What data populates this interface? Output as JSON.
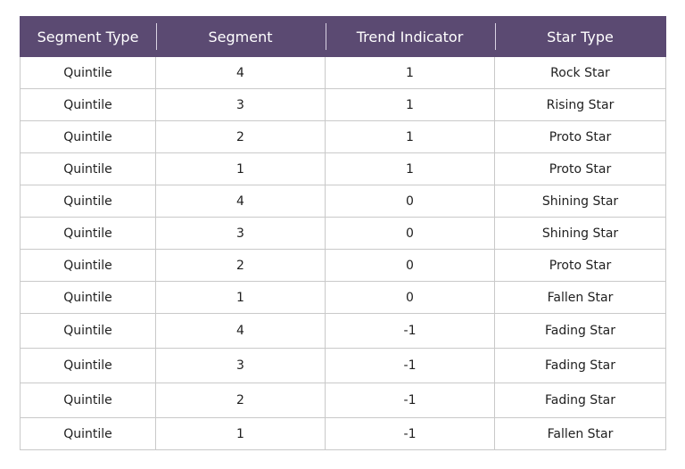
{
  "table": {
    "headers": [
      "Segment  Type",
      "Segment",
      "Trend Indicator",
      "Star Type"
    ],
    "rows": [
      [
        "Quintile",
        "4",
        "1",
        "Rock Star"
      ],
      [
        "Quintile",
        "3",
        "1",
        "Rising Star"
      ],
      [
        "Quintile",
        "2",
        "1",
        "Proto Star"
      ],
      [
        "Quintile",
        "1",
        "1",
        "Proto Star"
      ],
      [
        "Quintile",
        "4",
        "0",
        "Shining Star"
      ],
      [
        "Quintile",
        "3",
        "0",
        "Shining Star"
      ],
      [
        "Quintile",
        "2",
        "0",
        "Proto Star"
      ],
      [
        "Quintile",
        "1",
        "0",
        "Fallen Star"
      ],
      [
        "Quintile",
        "4",
        "-1",
        "Fading Star"
      ],
      [
        "Quintile",
        "3",
        "-1",
        "Fading Star"
      ],
      [
        "Quintile",
        "2",
        "-1",
        "Fading Star"
      ],
      [
        "Quintile",
        "1",
        "-1",
        "Fallen Star"
      ]
    ]
  },
  "colors": {
    "header_bg": "#5b4a72",
    "header_text": "#ffffff",
    "border": "#c9c9c9"
  }
}
